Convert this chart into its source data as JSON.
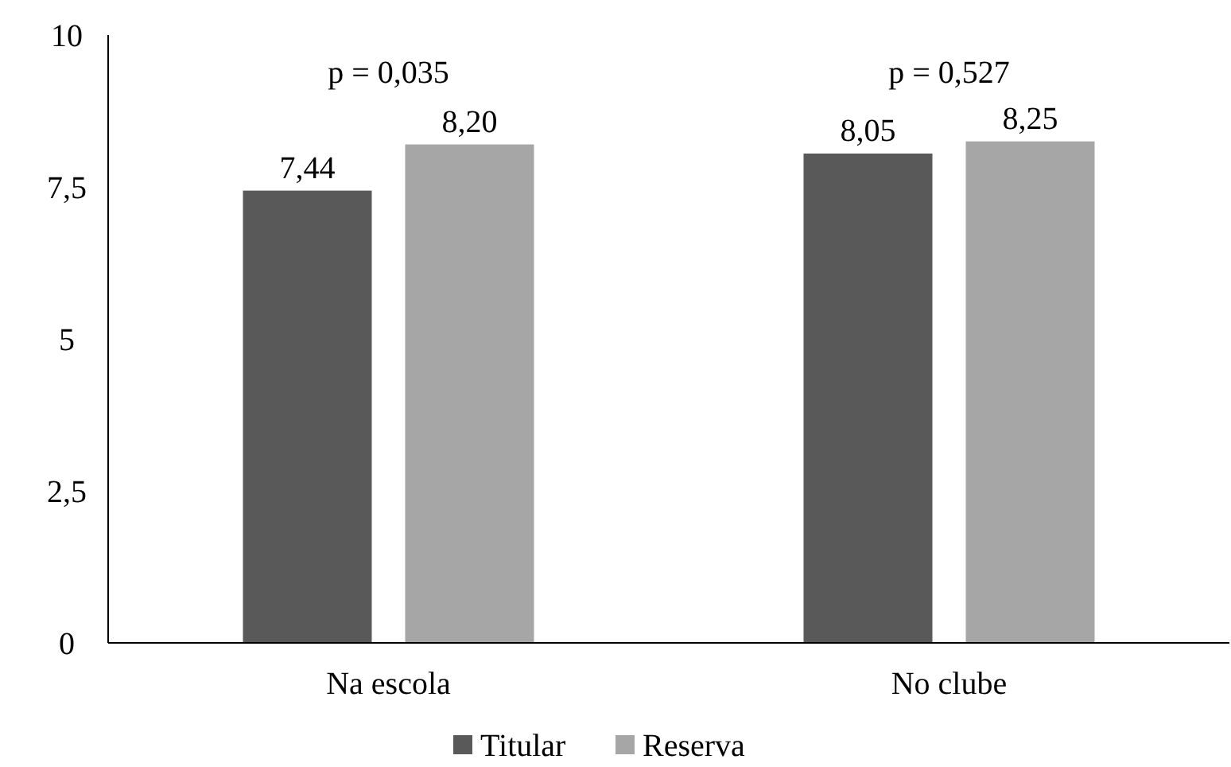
{
  "chart_data": {
    "type": "bar",
    "categories": [
      "Na escola",
      "No clube"
    ],
    "series": [
      {
        "name": "Titular",
        "color": "#595959",
        "values": [
          7.44,
          8.05
        ],
        "value_labels": [
          "7,44",
          "8,05"
        ]
      },
      {
        "name": "Reserva",
        "color": "#a6a6a6",
        "values": [
          8.2,
          8.25
        ],
        "value_labels": [
          "8,20",
          "8,25"
        ]
      }
    ],
    "ylim": [
      0,
      10
    ],
    "yticks": [
      0,
      {
        "value": 2.5,
        "label": "2,5"
      },
      5,
      {
        "value": 7.5,
        "label": "7,5"
      },
      10
    ],
    "annotations": [
      "p = 0,035",
      "p = 0,527"
    ],
    "legend": "bottom",
    "grid": false
  }
}
